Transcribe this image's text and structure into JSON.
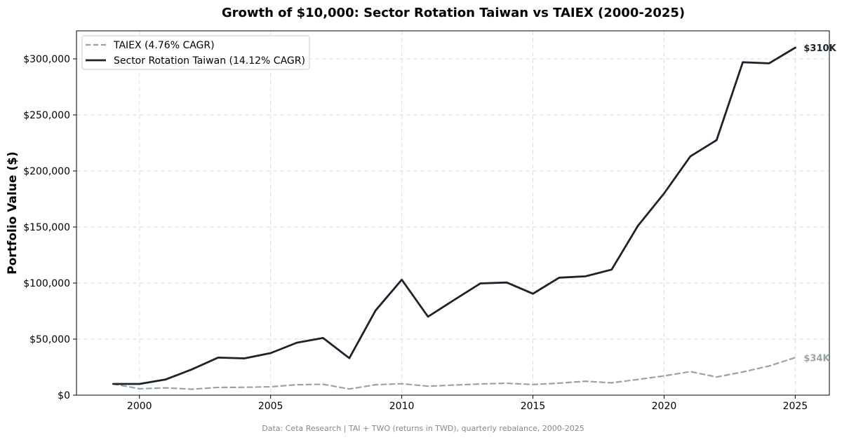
{
  "chart_data": {
    "type": "line",
    "title": "Growth of $10,000: Sector Rotation Taiwan vs TAIEX (2000-2025)",
    "xlabel": "",
    "ylabel": "Portfolio Value ($)",
    "xlim": [
      1997.6,
      2026.3
    ],
    "ylim": [
      0,
      325000
    ],
    "x_ticks": [
      2000,
      2005,
      2010,
      2015,
      2020,
      2025
    ],
    "y_ticks": [
      0,
      50000,
      100000,
      150000,
      200000,
      250000,
      300000
    ],
    "y_tick_labels": [
      "$0",
      "$50,000",
      "$100,000",
      "$150,000",
      "$200,000",
      "$250,000",
      "$300,000"
    ],
    "grid": true,
    "legend_position": "top-left",
    "x": [
      1999,
      2000,
      2001,
      2002,
      2003,
      2004,
      2005,
      2006,
      2007,
      2008,
      2009,
      2010,
      2011,
      2012,
      2013,
      2014,
      2015,
      2016,
      2017,
      2018,
      2019,
      2020,
      2021,
      2022,
      2023,
      2024,
      2025
    ],
    "series": [
      {
        "name": "TAIEX (4.76% CAGR)",
        "color": "#95a5a6",
        "style": "dashed",
        "values": [
          10000,
          5700,
          6500,
          5300,
          6900,
          7000,
          7500,
          9300,
          9700,
          5500,
          9300,
          10200,
          8000,
          9000,
          10000,
          10600,
          9500,
          10700,
          12400,
          11000,
          14000,
          17200,
          21000,
          16200,
          20700,
          26000,
          33500
        ],
        "end_label": "$34K"
      },
      {
        "name": "Sector Rotation Taiwan (14.12% CAGR)",
        "color": "#1b232c",
        "style": "solid",
        "values": [
          10000,
          10000,
          14000,
          23000,
          33500,
          32800,
          37500,
          46800,
          51000,
          33000,
          75500,
          103000,
          70000,
          85000,
          99700,
          100500,
          90500,
          104800,
          106000,
          112000,
          151000,
          180000,
          213000,
          227500,
          297000,
          296000,
          310000
        ],
        "end_label": "$310K"
      }
    ]
  },
  "footer": "Data: Ceta Research | TAI + TWO (returns in TWD), quarterly rebalance, 2000-2025"
}
